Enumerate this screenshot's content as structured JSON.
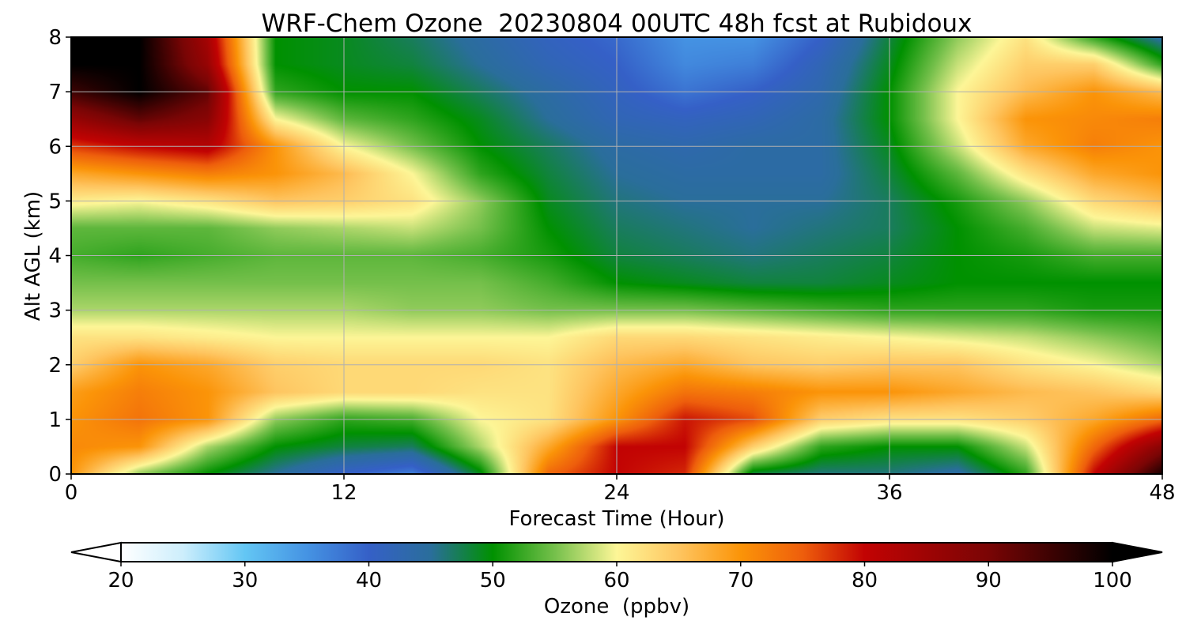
{
  "chart_data": {
    "type": "heatmap",
    "title": "WRF-Chem Ozone  20230804 00UTC 48h fcst at Rubidoux",
    "xlabel": "Forecast Time (Hour)",
    "ylabel": "Alt AGL (km)",
    "xlim": [
      0,
      48
    ],
    "ylim": [
      0,
      8
    ],
    "x_ticks": [
      0,
      12,
      24,
      36,
      48
    ],
    "x_tick_labels": [
      "0",
      "12",
      "24",
      "36",
      "48"
    ],
    "y_ticks": [
      0,
      1,
      2,
      3,
      4,
      5,
      6,
      7,
      8
    ],
    "y_tick_labels": [
      "0",
      "1",
      "2",
      "3",
      "4",
      "5",
      "6",
      "7",
      "8"
    ],
    "grid": true,
    "colorbar": {
      "label": "Ozone  (ppbv)",
      "min": 20,
      "max": 100,
      "extend": "both",
      "ticks": [
        20,
        30,
        40,
        50,
        60,
        70,
        80,
        90,
        100
      ],
      "tick_labels": [
        "20",
        "30",
        "40",
        "50",
        "60",
        "70",
        "80",
        "90",
        "100"
      ],
      "color_stops": [
        {
          "value": 20,
          "color": "#ffffff"
        },
        {
          "value": 25,
          "color": "#cdeefc"
        },
        {
          "value": 30,
          "color": "#63c6f4"
        },
        {
          "value": 35,
          "color": "#4593e3"
        },
        {
          "value": 40,
          "color": "#3560c7"
        },
        {
          "value": 45,
          "color": "#2a6e9b"
        },
        {
          "value": 50,
          "color": "#009100"
        },
        {
          "value": 55,
          "color": "#75c04b"
        },
        {
          "value": 60,
          "color": "#fdf697"
        },
        {
          "value": 65,
          "color": "#fec560"
        },
        {
          "value": 70,
          "color": "#fb9408"
        },
        {
          "value": 75,
          "color": "#ee5e0c"
        },
        {
          "value": 80,
          "color": "#c20303"
        },
        {
          "value": 90,
          "color": "#7a0505"
        },
        {
          "value": 100,
          "color": "#000000"
        }
      ]
    },
    "y_levels_km": [
      0,
      0.5,
      1,
      1.5,
      2,
      2.5,
      3,
      3.5,
      4,
      4.5,
      5,
      5.5,
      6,
      6.5,
      7,
      7.5,
      8
    ],
    "series": [
      {
        "x": 0,
        "values": [
          70,
          71,
          70,
          69,
          64,
          62,
          57,
          55,
          53,
          54,
          61,
          68,
          77,
          86,
          95,
          100,
          100
        ]
      },
      {
        "x": 3,
        "values": [
          56,
          70,
          73,
          72,
          70,
          62,
          57,
          55,
          52,
          54,
          60,
          70,
          80,
          92,
          100,
          100,
          100
        ]
      },
      {
        "x": 6,
        "values": [
          50,
          57,
          70,
          70,
          68,
          61,
          57,
          55,
          53,
          54,
          62,
          72,
          82,
          88,
          92,
          86,
          84
        ]
      },
      {
        "x": 9,
        "values": [
          45,
          50,
          56,
          65,
          64,
          60,
          57,
          55,
          54,
          56,
          65,
          70,
          70,
          60,
          52,
          50,
          50
        ]
      },
      {
        "x": 12,
        "values": [
          40,
          48,
          52,
          63,
          63,
          60,
          57,
          55,
          54,
          57,
          64,
          66,
          60,
          54,
          50,
          49,
          49
        ]
      },
      {
        "x": 15,
        "values": [
          37,
          47,
          53,
          63,
          63,
          60,
          56,
          55,
          54,
          58,
          62,
          60,
          55,
          52,
          50,
          48,
          47
        ]
      },
      {
        "x": 18,
        "values": [
          49,
          57,
          60,
          62,
          63,
          60,
          56,
          55,
          53,
          55,
          56,
          52,
          50,
          49,
          47,
          45,
          44
        ]
      },
      {
        "x": 21,
        "values": [
          74,
          68,
          62,
          62,
          62,
          60,
          55,
          53,
          51,
          50,
          49,
          48,
          47,
          45,
          44,
          42,
          41
        ]
      },
      {
        "x": 24,
        "values": [
          80,
          80,
          70,
          68,
          66,
          63,
          55,
          50,
          48,
          47,
          46,
          45,
          44,
          42,
          41,
          40,
          39
        ]
      },
      {
        "x": 27,
        "values": [
          78,
          80,
          79,
          73,
          68,
          63,
          55,
          49,
          47,
          46,
          45,
          44,
          43,
          41,
          38,
          36,
          35
        ]
      },
      {
        "x": 30,
        "values": [
          48,
          64,
          76,
          72,
          65,
          62,
          54,
          48,
          46,
          45,
          45,
          44,
          44,
          42,
          40,
          37,
          35
        ]
      },
      {
        "x": 33,
        "values": [
          46,
          52,
          64,
          70,
          64,
          61,
          53,
          48,
          47,
          46,
          45,
          44,
          44,
          44,
          43,
          42,
          40
        ]
      },
      {
        "x": 36,
        "values": [
          46,
          50,
          62,
          70,
          65,
          60,
          52,
          49,
          48,
          47,
          47,
          48,
          49,
          50,
          50,
          49,
          48
        ]
      },
      {
        "x": 39,
        "values": [
          44,
          50,
          62,
          68,
          65,
          59,
          52,
          50,
          50,
          50,
          51,
          54,
          58,
          60,
          60,
          58,
          56
        ]
      },
      {
        "x": 42,
        "values": [
          52,
          58,
          64,
          66,
          62,
          58,
          52,
          50,
          51,
          53,
          56,
          62,
          68,
          70,
          66,
          64,
          62
        ]
      },
      {
        "x": 45,
        "values": [
          80,
          74,
          68,
          65,
          60,
          56,
          51,
          50,
          53,
          58,
          63,
          68,
          72,
          71,
          70,
          64,
          52
        ]
      },
      {
        "x": 48,
        "values": [
          98,
          88,
          74,
          63,
          57,
          54,
          51,
          50,
          53,
          59,
          66,
          70,
          70,
          72,
          66,
          52,
          44
        ]
      }
    ]
  }
}
